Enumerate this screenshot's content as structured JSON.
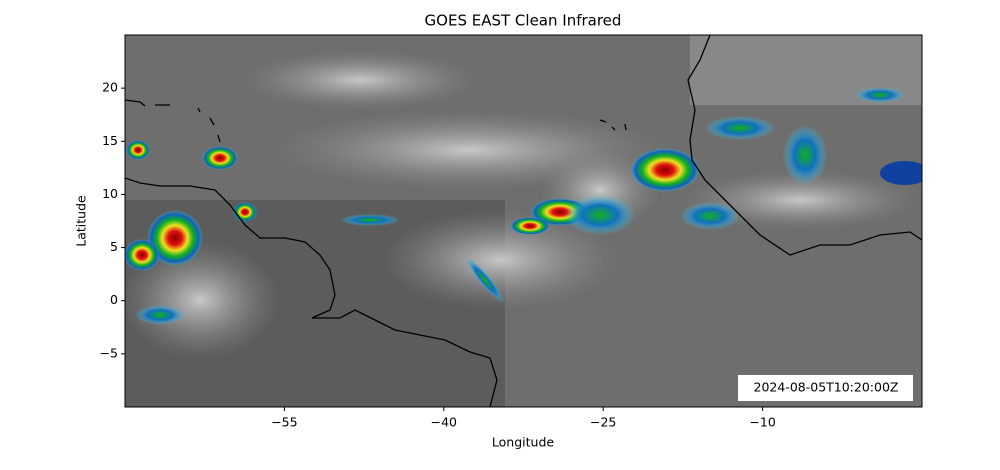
{
  "chart_data": {
    "type": "map",
    "title": "GOES EAST Clean Infrared",
    "xlabel": "Longitude",
    "ylabel": "Latitude",
    "xlim": [
      -70,
      5
    ],
    "ylim": [
      -10,
      25
    ],
    "xticks": [
      {
        "value": -55,
        "label": "−55"
      },
      {
        "value": -40,
        "label": "−40"
      },
      {
        "value": -25,
        "label": "−25"
      },
      {
        "value": -10,
        "label": "−10"
      }
    ],
    "yticks": [
      {
        "value": -5,
        "label": "−5"
      },
      0,
      5,
      10,
      15,
      20
    ],
    "annotation": "2024-08-05T10:20:00Z"
  }
}
